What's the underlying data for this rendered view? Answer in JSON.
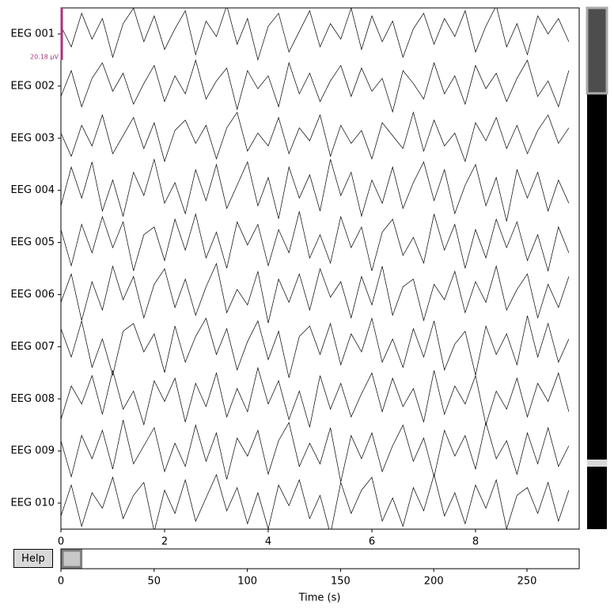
{
  "chart_data": {
    "type": "line",
    "x_label": "Time (s)",
    "xlim": [
      0,
      10
    ],
    "xticks": [
      0,
      2,
      4,
      6,
      8
    ],
    "x": [
      0,
      0.2,
      0.4,
      0.6,
      0.8,
      1,
      1.2,
      1.4,
      1.6,
      1.8,
      2,
      2.2,
      2.4,
      2.6,
      2.8,
      3,
      3.2,
      3.4,
      3.6,
      3.8,
      4,
      4.2,
      4.4,
      4.6,
      4.8,
      5,
      5.2,
      5.4,
      5.6,
      5.8,
      6,
      6.2,
      6.4,
      6.6,
      6.8,
      7,
      7.2,
      7.4,
      7.6,
      7.8,
      8,
      8.2,
      8.4,
      8.6,
      8.8,
      9,
      9.2,
      9.4,
      9.6,
      9.8
    ],
    "series": [
      {
        "name": "EEG 001",
        "color": "#000000",
        "values": [
          3,
          -5,
          8,
          -2,
          6,
          -9,
          4,
          10,
          -3,
          7,
          -6,
          2,
          9,
          -8,
          5,
          -1,
          11,
          -4,
          6,
          -10,
          3,
          8,
          -7,
          1,
          9,
          -5,
          4,
          -2,
          10,
          -6,
          7,
          -3,
          5,
          -9,
          2,
          8,
          -4,
          6,
          -1,
          9,
          -7,
          3,
          11,
          -5,
          4,
          -8,
          7,
          0,
          6,
          -3
        ]
      },
      {
        "name": "EEG 002",
        "color": "#000000",
        "values": [
          -4,
          6,
          -8,
          3,
          9,
          -2,
          5,
          -7,
          1,
          8,
          -6,
          4,
          -3,
          10,
          -5,
          2,
          7,
          -9,
          6,
          -1,
          4,
          -8,
          9,
          -3,
          5,
          -6,
          2,
          8,
          -4,
          7,
          -2,
          3,
          -10,
          6,
          1,
          -5,
          9,
          -3,
          4,
          -7,
          8,
          -1,
          5,
          -6,
          3,
          10,
          -4,
          2,
          -8,
          6
        ]
      },
      {
        "name": "EEG 003",
        "color": "#000000",
        "values": [
          2,
          -7,
          5,
          -3,
          9,
          -6,
          1,
          8,
          -4,
          6,
          -9,
          3,
          7,
          -2,
          5,
          -8,
          4,
          10,
          -5,
          2,
          -3,
          8,
          -6,
          4,
          -1,
          9,
          -7,
          5,
          -2,
          3,
          -8,
          6,
          1,
          -4,
          10,
          -5,
          7,
          -3,
          2,
          -9,
          6,
          -1,
          8,
          -4,
          5,
          -6,
          3,
          9,
          -2,
          4
        ]
      },
      {
        "name": "EEG 004",
        "color": "#000000",
        "values": [
          -6,
          9,
          -3,
          11,
          -8,
          4,
          -10,
          7,
          -2,
          12,
          -5,
          3,
          -9,
          8,
          -4,
          10,
          -7,
          2,
          11,
          -6,
          5,
          -11,
          9,
          -3,
          6,
          -8,
          12,
          -2,
          7,
          -10,
          4,
          -5,
          9,
          -7,
          3,
          11,
          -4,
          8,
          -9,
          2,
          10,
          -6,
          5,
          -12,
          8,
          -3,
          7,
          -8,
          4,
          -5
        ]
      },
      {
        "name": "EEG 005",
        "color": "#000000",
        "values": [
          5,
          -9,
          7,
          -4,
          10,
          -2,
          8,
          -11,
          3,
          6,
          -7,
          9,
          -3,
          11,
          -6,
          4,
          -10,
          8,
          -1,
          7,
          -9,
          5,
          -4,
          12,
          -6,
          3,
          -8,
          10,
          -2,
          6,
          -11,
          4,
          9,
          -5,
          2,
          -8,
          11,
          -3,
          7,
          -10,
          5,
          -6,
          9,
          -2,
          8,
          -7,
          3,
          -11,
          6,
          -4
        ]
      },
      {
        "name": "EEG 006",
        "color": "#000000",
        "values": [
          -3,
          8,
          -10,
          5,
          -6,
          11,
          -2,
          7,
          -9,
          4,
          10,
          -5,
          6,
          -8,
          3,
          12,
          -7,
          2,
          -4,
          9,
          -11,
          6,
          -3,
          8,
          -6,
          10,
          -1,
          5,
          -9,
          7,
          -4,
          11,
          -8,
          3,
          6,
          -10,
          4,
          -2,
          9,
          -7,
          5,
          -3,
          11,
          -6,
          2,
          8,
          -9,
          4,
          -5,
          7
        ]
      },
      {
        "name": "EEG 007",
        "color": "#000000",
        "values": [
          7,
          -4,
          10,
          -8,
          3,
          -11,
          6,
          9,
          -2,
          5,
          -10,
          8,
          -6,
          4,
          11,
          -3,
          7,
          -9,
          2,
          10,
          -5,
          6,
          -12,
          4,
          8,
          -3,
          9,
          -7,
          5,
          -2,
          11,
          -6,
          3,
          -8,
          7,
          -4,
          10,
          -9,
          1,
          6,
          -11,
          8,
          -3,
          5,
          -7,
          12,
          -4,
          9,
          -6,
          3
        ]
      },
      {
        "name": "EEG 008",
        "color": "#000000",
        "values": [
          -8,
          5,
          -2,
          9,
          -6,
          11,
          -4,
          3,
          -10,
          7,
          -1,
          8,
          -9,
          6,
          -3,
          10,
          -7,
          4,
          -5,
          12,
          -2,
          7,
          -8,
          3,
          -11,
          9,
          -4,
          6,
          -7,
          2,
          10,
          -5,
          8,
          -3,
          4,
          -9,
          11,
          -6,
          5,
          -2,
          9,
          -10,
          3,
          -4,
          8,
          -7,
          6,
          -1,
          10,
          -5
        ]
      },
      {
        "name": "EEG 009",
        "color": "#000000",
        "values": [
          4,
          -10,
          6,
          -3,
          8,
          -7,
          12,
          -5,
          2,
          9,
          -8,
          3,
          -6,
          10,
          -4,
          7,
          -11,
          5,
          -2,
          8,
          -9,
          4,
          11,
          -6,
          3,
          -5,
          9,
          -12,
          6,
          -3,
          7,
          -8,
          2,
          10,
          -4,
          5,
          -10,
          8,
          -2,
          6,
          -7,
          11,
          -3,
          4,
          -9,
          7,
          -5,
          9,
          -6,
          2
        ]
      },
      {
        "name": "EEG 010",
        "color": "#000000",
        "values": [
          -5,
          7,
          -9,
          4,
          -2,
          10,
          -6,
          3,
          8,
          -11,
          5,
          -4,
          9,
          -7,
          2,
          11,
          -3,
          6,
          -8,
          4,
          -10,
          7,
          -1,
          9,
          -6,
          3,
          -12,
          8,
          -4,
          5,
          10,
          -7,
          2,
          -9,
          6,
          -3,
          11,
          -5,
          4,
          -8,
          7,
          -2,
          9,
          -10,
          3,
          6,
          -4,
          8,
          -7,
          5
        ]
      }
    ],
    "scale_bar": {
      "value": 20.18,
      "label": "20.18 µV",
      "color": "#aa3377"
    }
  },
  "scrollbar": {
    "xlim": [
      0,
      278
    ],
    "xticks": [
      0,
      50,
      100,
      150,
      200,
      250
    ],
    "window": [
      0,
      10
    ]
  },
  "help": "Help"
}
